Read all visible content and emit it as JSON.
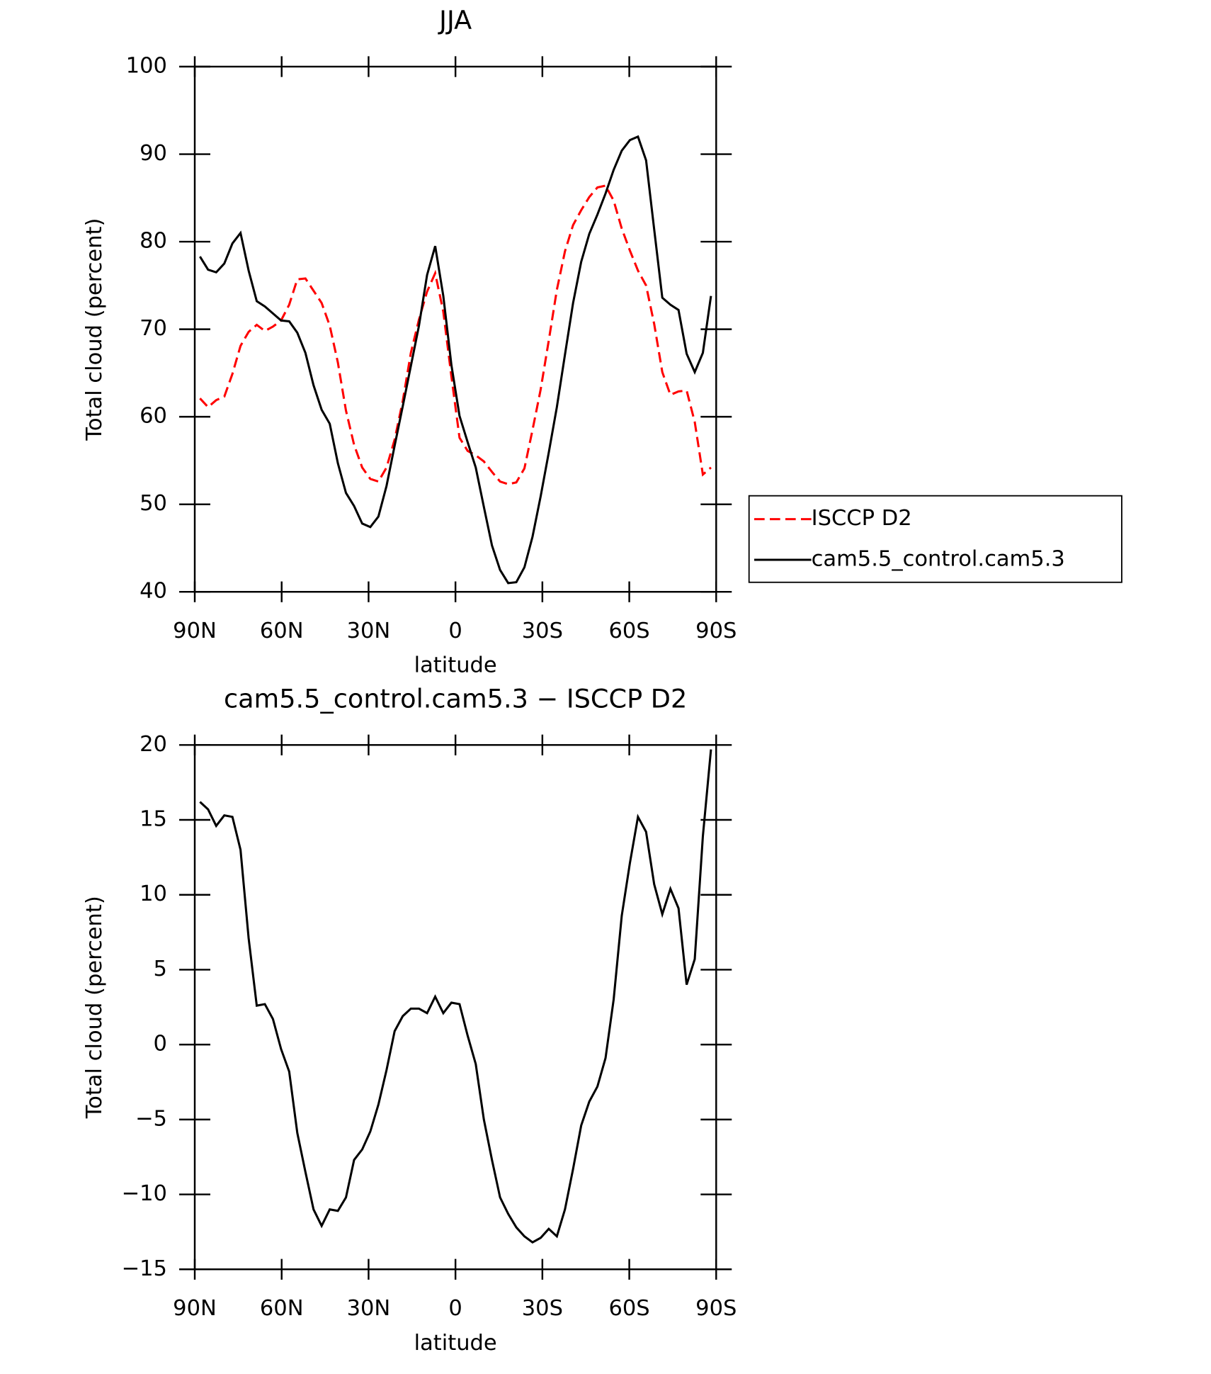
{
  "chart_data": [
    {
      "type": "line",
      "title": "JJA",
      "xlabel": "latitude",
      "ylabel": "Total cloud (percent)",
      "x": [
        88.2,
        85.4,
        82.6,
        79.8,
        77.0,
        74.2,
        71.4,
        68.6,
        65.8,
        63.0,
        60.2,
        57.4,
        54.6,
        51.8,
        49.0,
        46.2,
        43.4,
        40.6,
        37.8,
        35.0,
        32.2,
        29.4,
        26.6,
        23.8,
        21.0,
        18.2,
        15.4,
        12.6,
        9.8,
        7.0,
        4.2,
        1.4,
        -1.4,
        -4.2,
        -7.0,
        -9.8,
        -12.6,
        -15.4,
        -18.2,
        -21.0,
        -23.8,
        -26.6,
        -29.4,
        -32.2,
        -35.0,
        -37.8,
        -40.6,
        -43.4,
        -46.2,
        -49.0,
        -51.8,
        -54.6,
        -57.4,
        -60.2,
        -63.0,
        -65.8,
        -68.6,
        -71.4,
        -74.2,
        -77.0,
        -79.8,
        -82.6,
        -85.4,
        -88.2
      ],
      "series": [
        {
          "name": "ISCCP D2",
          "color": "#ff0000",
          "line_style": "dashed",
          "values": [
            62.1,
            61.1,
            61.9,
            62.3,
            64.9,
            68.1,
            69.7,
            70.5,
            69.8,
            70.3,
            71.0,
            72.8,
            75.7,
            75.8,
            74.4,
            73.0,
            70.4,
            66.2,
            60.7,
            56.8,
            54.2,
            52.9,
            52.6,
            54.2,
            57.4,
            61.8,
            67.3,
            71.1,
            74.3,
            76.4,
            72.0,
            64.6,
            57.6,
            56.1,
            55.6,
            54.9,
            53.7,
            52.6,
            52.3,
            52.5,
            54.1,
            58.5,
            63.1,
            68.7,
            74.5,
            78.9,
            81.9,
            83.6,
            85.1,
            86.2,
            86.4,
            84.7,
            81.5,
            79.0,
            76.7,
            75.0,
            70.6,
            65.1,
            62.5,
            62.9,
            63.0,
            59.4,
            53.4,
            54.2
          ]
        },
        {
          "name": "cam5.5_control.cam5.3",
          "color": "#000000",
          "line_style": "solid",
          "values": [
            78.3,
            76.8,
            76.5,
            77.5,
            79.8,
            81.0,
            76.7,
            73.2,
            72.6,
            71.8,
            71.0,
            70.9,
            69.6,
            67.3,
            63.6,
            60.8,
            59.2,
            54.7,
            51.3,
            49.8,
            47.8,
            47.4,
            48.6,
            52.1,
            56.7,
            61.2,
            65.8,
            70.4,
            76.2,
            79.5,
            73.8,
            65.9,
            60.1,
            57.1,
            54.2,
            49.7,
            45.3,
            42.5,
            41.0,
            41.1,
            42.8,
            46.3,
            50.9,
            55.9,
            61.1,
            67.1,
            73.0,
            77.7,
            80.9,
            83.1,
            85.5,
            88.2,
            90.4,
            91.6,
            92.0,
            89.3,
            81.4,
            73.6,
            72.8,
            72.2,
            67.2,
            65.1,
            67.3,
            73.8
          ]
        }
      ],
      "xlim": [
        90,
        -90
      ],
      "xticks": [
        {
          "value": 90,
          "label": "90N"
        },
        {
          "value": 60,
          "label": "60N"
        },
        {
          "value": 30,
          "label": "30N"
        },
        0,
        {
          "value": -30,
          "label": "30S"
        },
        {
          "value": -60,
          "label": "60S"
        },
        {
          "value": -90,
          "label": "90S"
        }
      ],
      "ylim": [
        40,
        100
      ],
      "yticks": [
        40,
        50,
        60,
        70,
        80,
        90,
        100
      ],
      "legend": "right"
    },
    {
      "type": "line",
      "title": "cam5.5_control.cam5.3 − ISCCP D2",
      "xlabel": "latitude",
      "ylabel": "Total cloud (percent)",
      "x": [
        88.2,
        85.4,
        82.6,
        79.8,
        77.0,
        74.2,
        71.4,
        68.6,
        65.8,
        63.0,
        60.2,
        57.4,
        54.6,
        51.8,
        49.0,
        46.2,
        43.4,
        40.6,
        37.8,
        35.0,
        32.2,
        29.4,
        26.6,
        23.8,
        21.0,
        18.2,
        15.4,
        12.6,
        9.8,
        7.0,
        4.2,
        1.4,
        -1.4,
        -4.2,
        -7.0,
        -9.8,
        -12.6,
        -15.4,
        -18.2,
        -21.0,
        -23.8,
        -26.6,
        -29.4,
        -32.2,
        -35.0,
        -37.8,
        -40.6,
        -43.4,
        -46.2,
        -49.0,
        -51.8,
        -54.6,
        -57.4,
        -60.2,
        -63.0,
        -65.8,
        -68.6,
        -71.4,
        -74.2,
        -77.0,
        -79.8,
        -82.6,
        -85.4,
        -88.2
      ],
      "color": "#000000",
      "values": [
        16.2,
        15.7,
        14.6,
        15.3,
        15.2,
        13.0,
        7.1,
        2.6,
        2.7,
        1.7,
        -0.3,
        -1.8,
        -5.9,
        -8.5,
        -11.0,
        -12.1,
        -11.0,
        -11.1,
        -10.2,
        -7.7,
        -7.0,
        -5.8,
        -4.0,
        -1.7,
        0.9,
        1.9,
        2.4,
        2.4,
        2.1,
        3.2,
        2.1,
        2.8,
        2.7,
        0.6,
        -1.3,
        -5.0,
        -7.7,
        -10.2,
        -11.3,
        -12.2,
        -12.8,
        -13.2,
        -12.9,
        -12.3,
        -12.8,
        -11.0,
        -8.3,
        -5.4,
        -3.8,
        -2.8,
        -0.9,
        3.0,
        8.6,
        12.1,
        15.2,
        14.2,
        10.7,
        8.7,
        10.4,
        9.1,
        4.0,
        5.7,
        13.9,
        19.7
      ],
      "xlim": [
        90,
        -90
      ],
      "xticks": [
        {
          "value": 90,
          "label": "90N"
        },
        {
          "value": 60,
          "label": "60N"
        },
        {
          "value": 30,
          "label": "30N"
        },
        0,
        {
          "value": -30,
          "label": "30S"
        },
        {
          "value": -60,
          "label": "60S"
        },
        {
          "value": -90,
          "label": "90S"
        }
      ],
      "ylim": [
        -15,
        20
      ],
      "yticks": [
        {
          "value": -15,
          "label": "−15"
        },
        {
          "value": -10,
          "label": "−10"
        },
        {
          "value": -5,
          "label": "−5"
        },
        0,
        5,
        10,
        15,
        20
      ]
    }
  ]
}
